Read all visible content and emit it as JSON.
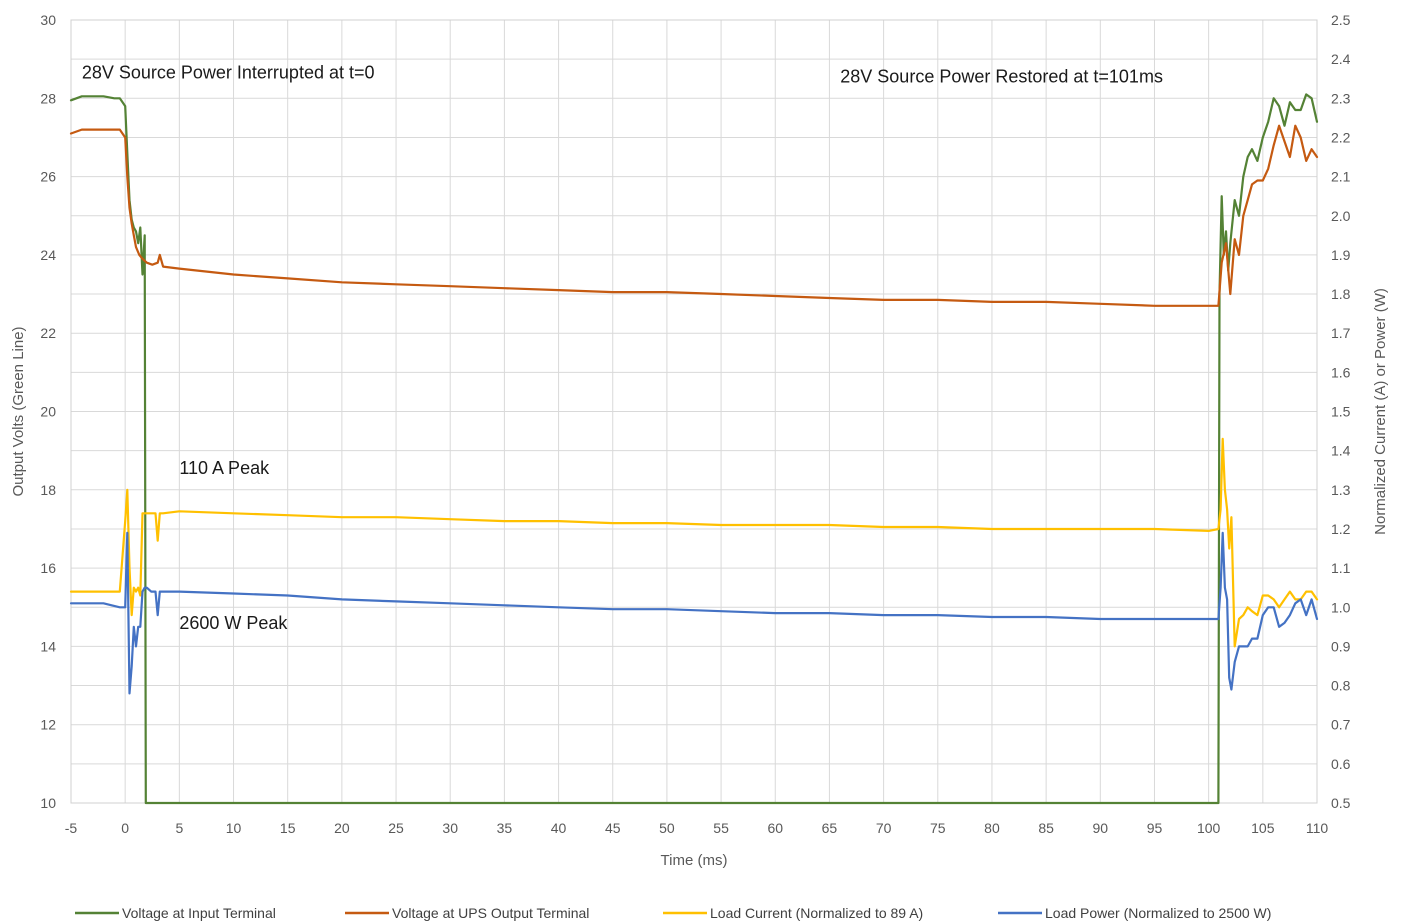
{
  "chart_data": {
    "type": "line",
    "xlabel": "Time (ms)",
    "ylabel_left": "Output Volts (Green Line)",
    "ylabel_right": "Normalized Current (A) or Power (W)",
    "xlim": [
      -5,
      110
    ],
    "ylim_left": [
      10,
      30
    ],
    "ylim_right": [
      0.5,
      2.5
    ],
    "grid": true,
    "legend_position": "bottom",
    "x_ticks": [
      -5,
      0,
      5,
      10,
      15,
      20,
      25,
      30,
      35,
      40,
      45,
      50,
      55,
      60,
      65,
      70,
      75,
      80,
      85,
      90,
      95,
      100,
      105,
      110
    ],
    "y_left_ticks": [
      10,
      12,
      14,
      16,
      18,
      20,
      22,
      24,
      26,
      28,
      30
    ],
    "y_right_ticks": [
      "0.5",
      "0.6",
      "0.7",
      "0.8",
      "0.9",
      "1.0",
      "1.1",
      "1.2",
      "1.3",
      "1.4",
      "1.5",
      "1.6",
      "1.7",
      "1.8",
      "1.9",
      "2.0",
      "2.1",
      "2.2",
      "2.3",
      "2.4",
      "2.5"
    ],
    "annotations": [
      {
        "text": "28V Source Power Interrupted at t=0",
        "x": -4,
        "y": 28.5
      },
      {
        "text": "28V Source Power Restored at t=101ms",
        "x": 66,
        "y": 28.4
      },
      {
        "text": "110  A Peak",
        "x": 5,
        "y": 18.4
      },
      {
        "text": "2600  W Peak",
        "x": 5,
        "y": 14.45
      }
    ],
    "series": [
      {
        "name": "Voltage at Input Terminal",
        "axis": "left",
        "color": "#548235",
        "x": [
          -5,
          -4,
          -2,
          -1,
          -0.5,
          0,
          0.2,
          0.4,
          0.6,
          0.8,
          1.0,
          1.2,
          1.4,
          1.6,
          1.8,
          1.85,
          1.9,
          100.9,
          101.0,
          101.2,
          101.4,
          101.6,
          101.8,
          102.0,
          102.4,
          102.8,
          103.2,
          103.6,
          104.0,
          104.5,
          105.0,
          105.5,
          106.0,
          106.5,
          107.0,
          107.5,
          108.0,
          108.5,
          109.0,
          109.5,
          110.0
        ],
        "y": [
          27.95,
          28.05,
          28.05,
          28.0,
          28.0,
          27.8,
          26.6,
          25.4,
          24.9,
          24.7,
          24.6,
          24.3,
          24.7,
          23.5,
          24.5,
          18.0,
          10.0,
          10.0,
          23.0,
          25.5,
          24.0,
          24.6,
          23.6,
          24.3,
          25.4,
          25.0,
          26.0,
          26.5,
          26.7,
          26.4,
          27.0,
          27.4,
          28.0,
          27.8,
          27.3,
          27.9,
          27.7,
          27.7,
          28.1,
          28.0,
          27.4
        ]
      },
      {
        "name": "Voltage at UPS Output Terminal",
        "axis": "left",
        "color": "#c55a11",
        "x": [
          -5,
          -4,
          -2,
          -1,
          -0.5,
          0,
          0.2,
          0.4,
          0.6,
          0.8,
          1.0,
          1.3,
          1.6,
          2.0,
          2.5,
          3.0,
          3.2,
          3.5,
          5,
          10,
          15,
          20,
          25,
          30,
          35,
          40,
          45,
          50,
          55,
          60,
          65,
          70,
          75,
          80,
          85,
          90,
          95,
          100,
          100.9,
          101.2,
          101.6,
          102.0,
          102.4,
          102.8,
          103.2,
          103.6,
          104.0,
          104.5,
          105.0,
          105.5,
          106.0,
          106.5,
          107.0,
          107.5,
          108.0,
          108.5,
          109.0,
          109.5,
          110.0
        ],
        "y": [
          27.1,
          27.2,
          27.2,
          27.2,
          27.2,
          27.0,
          26.0,
          25.2,
          24.8,
          24.5,
          24.2,
          24.0,
          23.9,
          23.8,
          23.75,
          23.8,
          24.0,
          23.7,
          23.65,
          23.5,
          23.4,
          23.3,
          23.25,
          23.2,
          23.15,
          23.1,
          23.05,
          23.05,
          23.0,
          22.95,
          22.9,
          22.85,
          22.85,
          22.8,
          22.8,
          22.75,
          22.7,
          22.7,
          22.7,
          23.8,
          24.3,
          23.0,
          24.4,
          24.0,
          25.0,
          25.4,
          25.8,
          25.9,
          25.9,
          26.2,
          26.8,
          27.3,
          26.9,
          26.5,
          27.3,
          27.0,
          26.4,
          26.7,
          26.5
        ]
      },
      {
        "name": "Load Current (Normalized to 89 A)",
        "axis": "right",
        "color": "#ffc000",
        "x": [
          -5,
          -4,
          -2,
          -0.5,
          0,
          0.2,
          0.4,
          0.6,
          0.8,
          1.0,
          1.2,
          1.4,
          1.6,
          1.8,
          2.0,
          2.4,
          2.8,
          3.0,
          3.2,
          3.5,
          5,
          10,
          15,
          20,
          25,
          30,
          35,
          40,
          45,
          50,
          55,
          60,
          65,
          70,
          75,
          80,
          85,
          90,
          95,
          100,
          100.9,
          101.1,
          101.3,
          101.5,
          101.7,
          101.9,
          102.1,
          102.4,
          102.8,
          103.2,
          103.6,
          104.0,
          104.5,
          105.0,
          105.5,
          106.0,
          106.5,
          107.0,
          107.5,
          108.0,
          108.5,
          109.0,
          109.5,
          110.0
        ],
        "y": [
          1.04,
          1.04,
          1.04,
          1.04,
          1.22,
          1.3,
          1.1,
          0.98,
          1.05,
          1.04,
          1.05,
          1.03,
          1.24,
          1.24,
          1.24,
          1.24,
          1.24,
          1.17,
          1.24,
          1.24,
          1.245,
          1.24,
          1.235,
          1.23,
          1.23,
          1.225,
          1.22,
          1.22,
          1.215,
          1.215,
          1.21,
          1.21,
          1.21,
          1.205,
          1.205,
          1.2,
          1.2,
          1.2,
          1.2,
          1.195,
          1.2,
          1.25,
          1.43,
          1.3,
          1.25,
          1.15,
          1.23,
          0.9,
          0.97,
          0.98,
          1.0,
          0.99,
          0.98,
          1.03,
          1.03,
          1.02,
          1.0,
          1.02,
          1.04,
          1.02,
          1.02,
          1.04,
          1.04,
          1.02
        ]
      },
      {
        "name": "Load Power (Normalized to 2500 W)",
        "axis": "right",
        "color": "#4472c4",
        "x": [
          -5,
          -4,
          -2,
          -0.5,
          0,
          0.2,
          0.4,
          0.6,
          0.8,
          1.0,
          1.2,
          1.4,
          1.6,
          1.8,
          2.0,
          2.4,
          2.8,
          3.0,
          3.2,
          3.5,
          5,
          10,
          15,
          20,
          25,
          30,
          35,
          40,
          45,
          50,
          55,
          60,
          65,
          70,
          75,
          80,
          85,
          90,
          95,
          100,
          100.9,
          101.1,
          101.3,
          101.5,
          101.7,
          101.9,
          102.1,
          102.4,
          102.8,
          103.2,
          103.6,
          104.0,
          104.5,
          105.0,
          105.5,
          106.0,
          106.5,
          107.0,
          107.5,
          108.0,
          108.5,
          109.0,
          109.5,
          110.0
        ],
        "y": [
          1.01,
          1.01,
          1.01,
          1.0,
          1.0,
          1.19,
          0.78,
          0.85,
          0.95,
          0.9,
          0.95,
          0.95,
          1.04,
          1.05,
          1.05,
          1.04,
          1.04,
          0.98,
          1.04,
          1.04,
          1.04,
          1.035,
          1.03,
          1.02,
          1.015,
          1.01,
          1.005,
          1.0,
          0.995,
          0.995,
          0.99,
          0.985,
          0.985,
          0.98,
          0.98,
          0.975,
          0.975,
          0.97,
          0.97,
          0.97,
          0.97,
          1.05,
          1.19,
          1.05,
          1.02,
          0.82,
          0.79,
          0.86,
          0.9,
          0.9,
          0.9,
          0.92,
          0.92,
          0.98,
          1.0,
          1.0,
          0.95,
          0.96,
          0.98,
          1.01,
          1.02,
          0.98,
          1.02,
          0.97
        ]
      }
    ]
  }
}
